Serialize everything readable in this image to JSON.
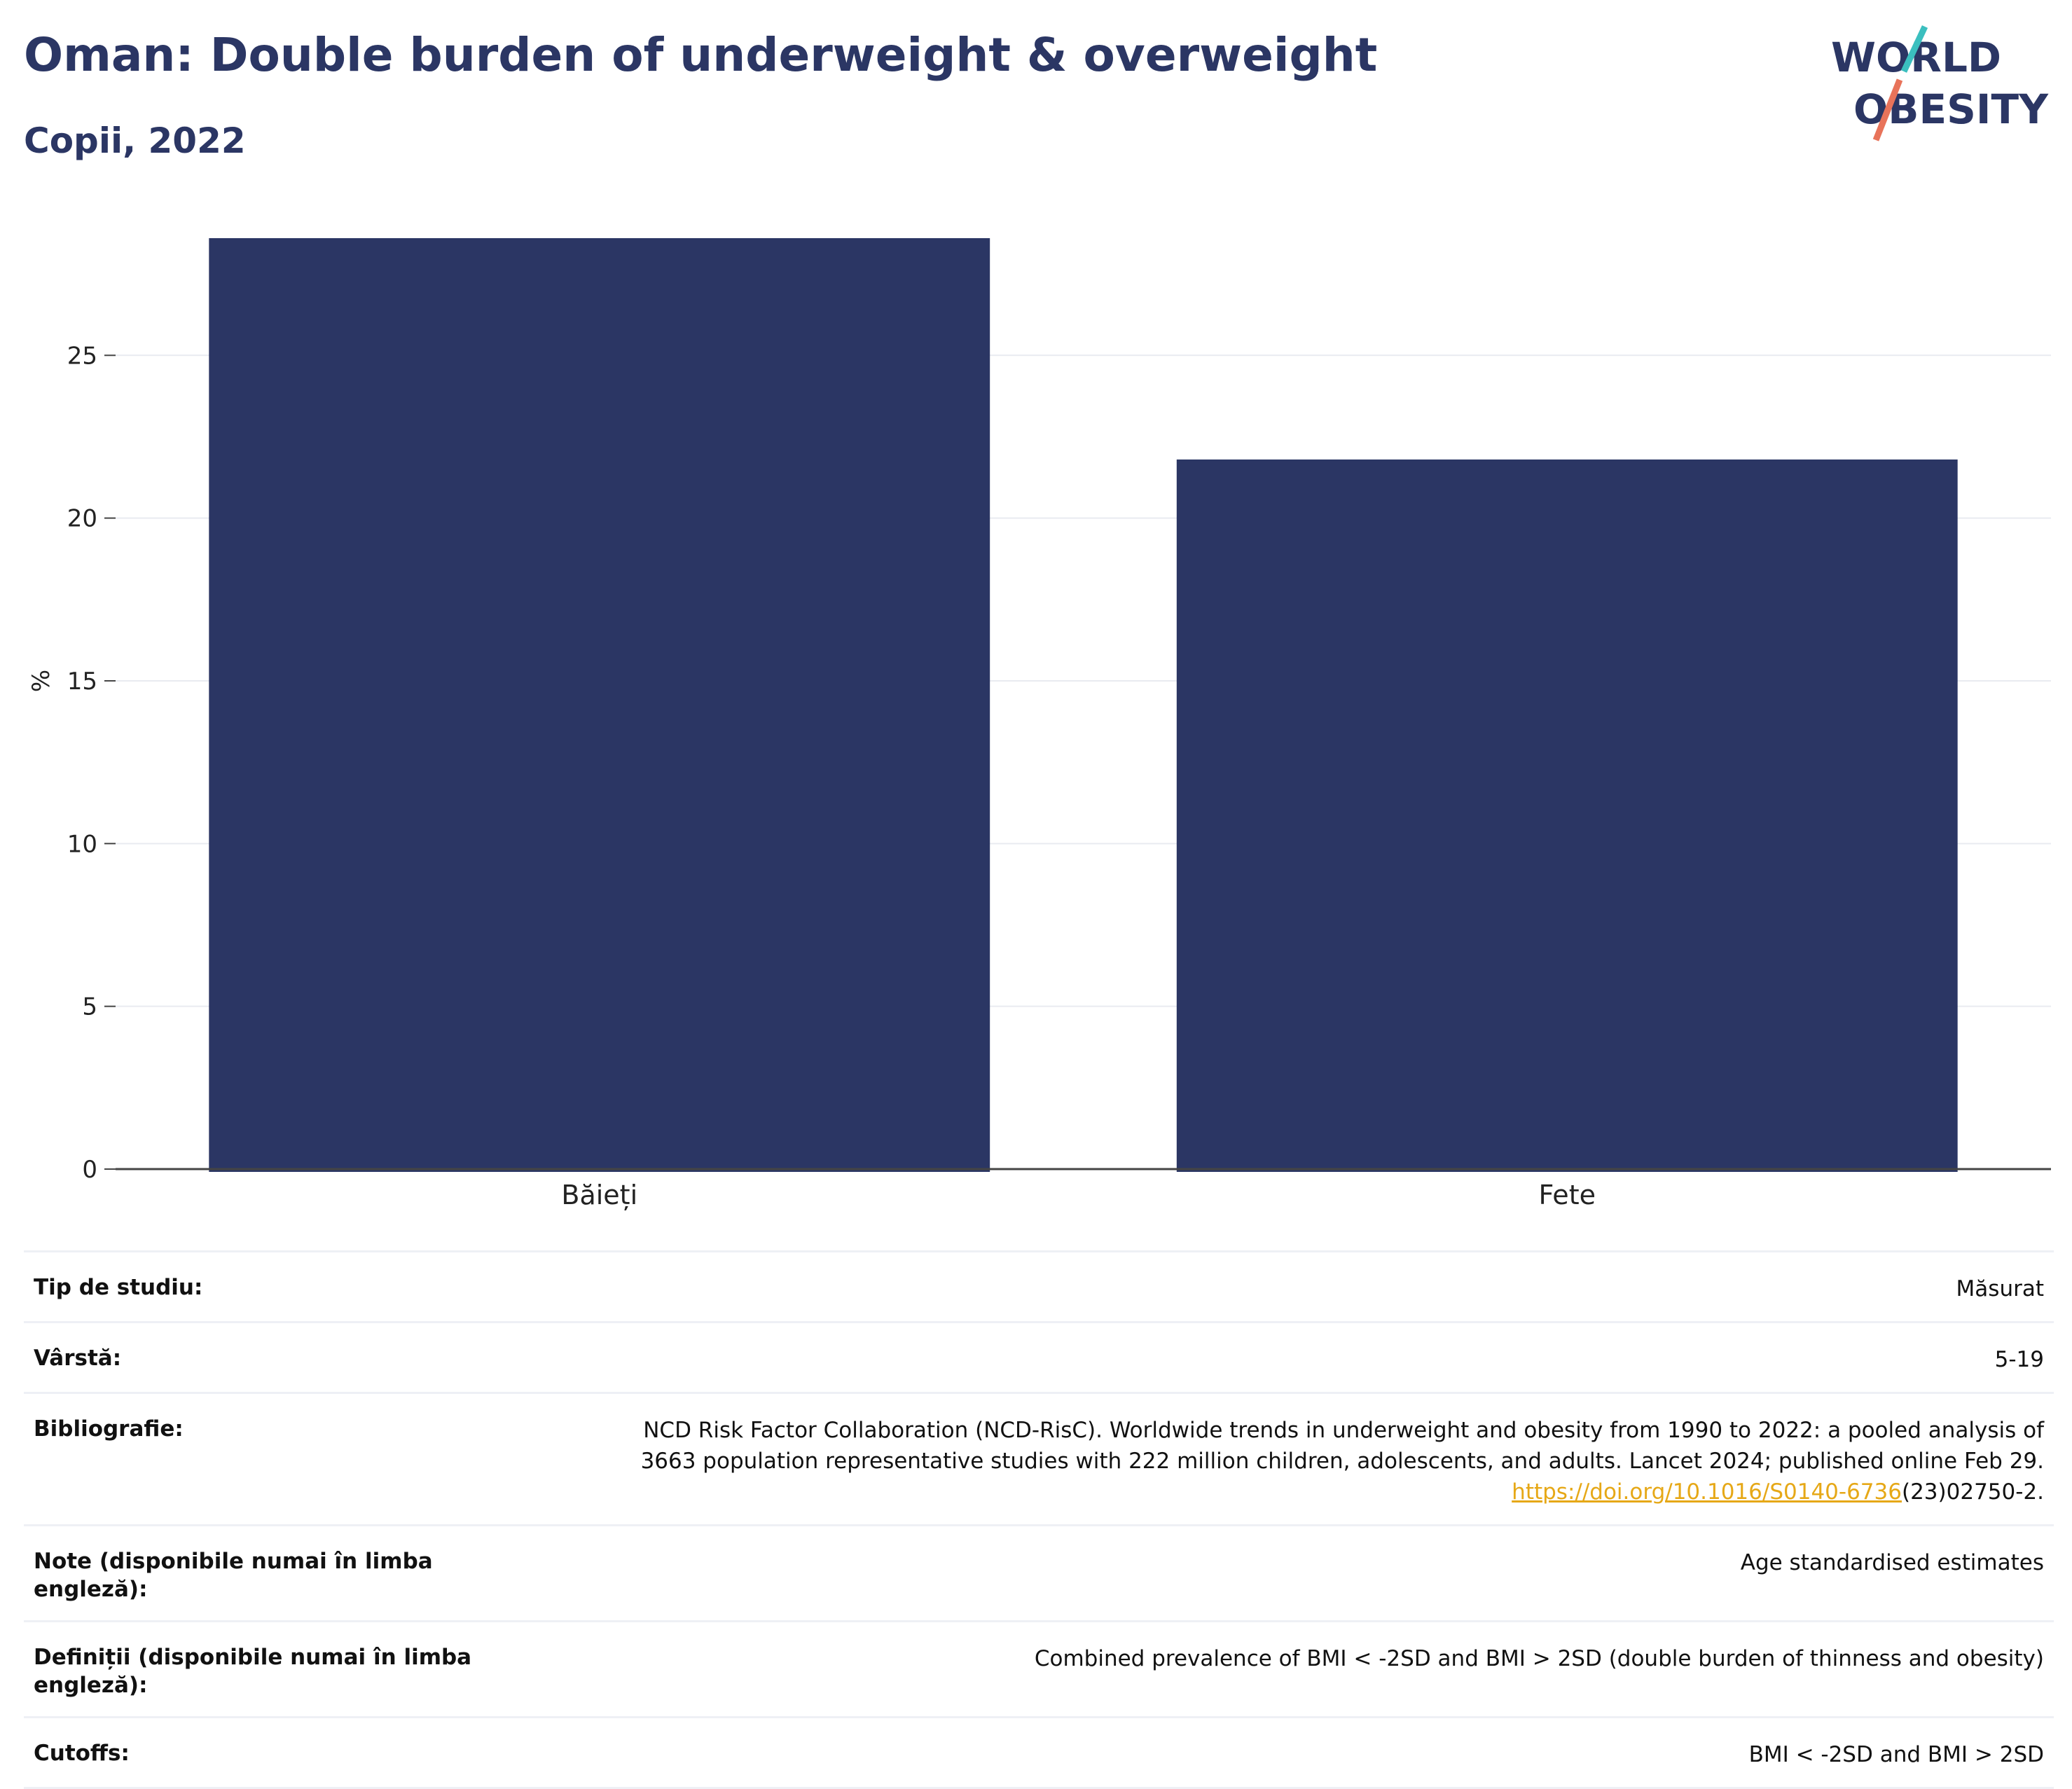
{
  "header": {
    "title": "Oman: Double burden of underweight & overweight",
    "subtitle": "Copii, 2022"
  },
  "logo": {
    "line1": "WORLD",
    "line2": "OBESITY",
    "colors": {
      "navy": "#2b3664",
      "teal": "#3bbfbf",
      "coral": "#e8735a"
    }
  },
  "chart_data": {
    "type": "bar",
    "categories": [
      "Băieți",
      "Fete"
    ],
    "values": [
      28.6,
      21.8
    ],
    "ylabel": "%",
    "ylim": [
      0,
      28.6
    ],
    "yticks": [
      0,
      5,
      10,
      15,
      20,
      25
    ],
    "grid": true,
    "bar_color": "#2b3664"
  },
  "info": [
    {
      "label": "Tip de studiu:",
      "value": "Măsurat"
    },
    {
      "label": "Vârstă:",
      "value": "5-19"
    },
    {
      "label": "Bibliografie:",
      "value_lines": [
        "NCD Risk Factor Collaboration (NCD-RisC). Worldwide trends in underweight and obesity from 1990 to 2022: a pooled analysis of",
        "3663 population representative studies with 222 million children, adolescents, and adults. Lancet 2024; published online Feb 29."
      ],
      "link_text": "https://doi.org/10.1016/S0140-6736",
      "link_suffix": "(23)02750-2."
    },
    {
      "label": "Note (disponibile numai în limba engleză):",
      "value": "Age standardised estimates"
    },
    {
      "label": "Definiții (disponibile numai în limba engleză):",
      "value": "Combined prevalence of BMI < -2SD and BMI > 2SD (double burden of thinness and obesity)"
    },
    {
      "label": "Cutoffs:",
      "value": "BMI < -2SD and BMI > 2SD"
    }
  ]
}
